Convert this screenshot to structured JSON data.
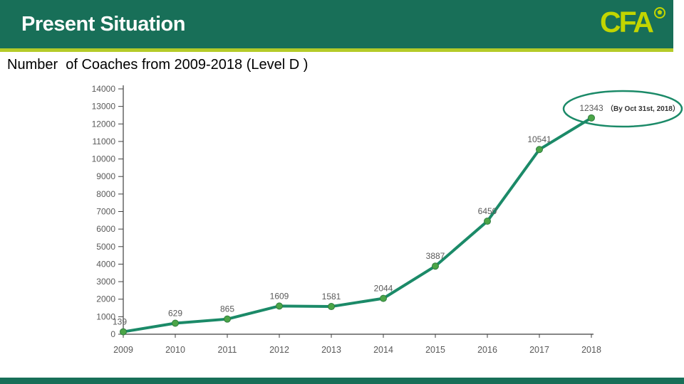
{
  "header": {
    "title": "Present Situation",
    "logo_text": "CFA"
  },
  "icons": {
    "soccer_ball": "circle-with-pentagon"
  },
  "chart_data": {
    "type": "line",
    "title": "Number  of Coaches from 2009-2018 (Level D )",
    "categories": [
      "2009",
      "2010",
      "2011",
      "2012",
      "2013",
      "2014",
      "2015",
      "2016",
      "2017",
      "2018"
    ],
    "values": [
      139,
      629,
      865,
      1609,
      1581,
      2044,
      3887,
      6450,
      10541,
      12343
    ],
    "xlabel": "",
    "ylabel": "",
    "ylim": [
      0,
      14000
    ],
    "ytick_step": 1000,
    "yticks": [
      "0",
      "1000",
      "2000",
      "3000",
      "4000",
      "5000",
      "6000",
      "7000",
      "8000",
      "9000",
      "10000",
      "11000",
      "12000",
      "13000",
      "14000"
    ],
    "grid": false,
    "legend": "none",
    "show_data_labels": true,
    "annotation": {
      "text": "（By Oct 31st, 2018）",
      "target_category": "2018",
      "shape": "ellipse"
    },
    "colors": {
      "line": "#1B8A68",
      "marker": "#4BA547",
      "marker_edge": "#2F7D3F",
      "data_label": "#595959",
      "tick_label": "#595959",
      "axis": "#3F3F3F",
      "annotation_text": "#333333",
      "ellipse": "#1B8A68"
    }
  },
  "colors": {
    "header_bg": "#186F58",
    "accent": "#B4CB28",
    "logo": "#C2D500",
    "footer_bg": "#186F58",
    "slide_bg": "#FFFFFF"
  }
}
